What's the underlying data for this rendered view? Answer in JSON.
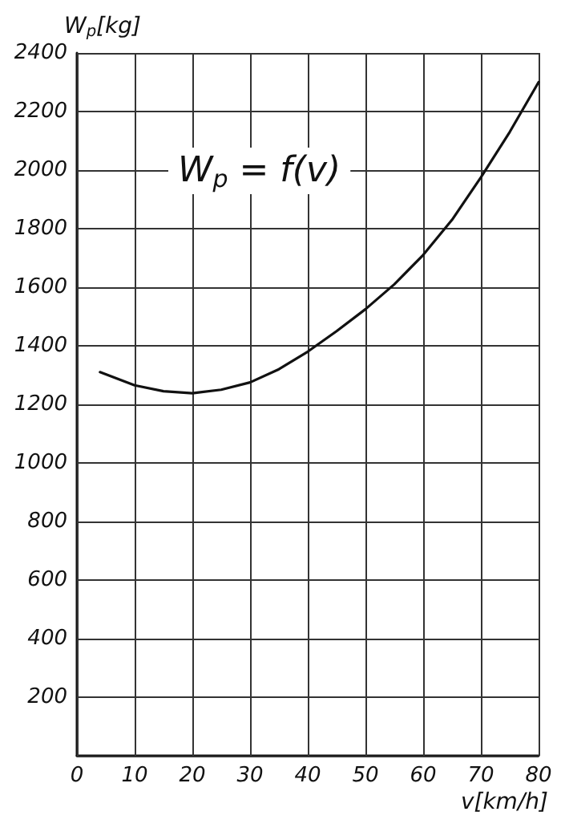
{
  "chart_data": {
    "type": "line",
    "xlabel": "v[km/h]",
    "ylabel": "W$_{p}$[kg]",
    "annotations": [
      "W$_{p}$ = f(v)"
    ],
    "x": [
      4,
      10,
      15,
      20,
      25,
      30,
      35,
      40,
      45,
      50,
      55,
      60,
      65,
      70,
      75,
      80
    ],
    "series": [
      {
        "color": "#111111",
        "values": [
          1310,
          1265,
          1245,
          1238,
          1250,
          1275,
          1320,
          1380,
          1450,
          1525,
          1610,
          1710,
          1830,
          1975,
          2130,
          2300
        ]
      }
    ],
    "xlim": [
      0,
      80
    ],
    "xticks": [
      0,
      10,
      20,
      30,
      40,
      50,
      60,
      70,
      80
    ],
    "ylim": [
      0,
      2400
    ],
    "yticks": [
      {
        "value": 0,
        "label": null
      },
      200,
      400,
      600,
      800,
      1000,
      1200,
      1400,
      1600,
      1800,
      2000,
      2200,
      2400
    ],
    "grid": true,
    "marker": "none",
    "line_style": "solid"
  }
}
